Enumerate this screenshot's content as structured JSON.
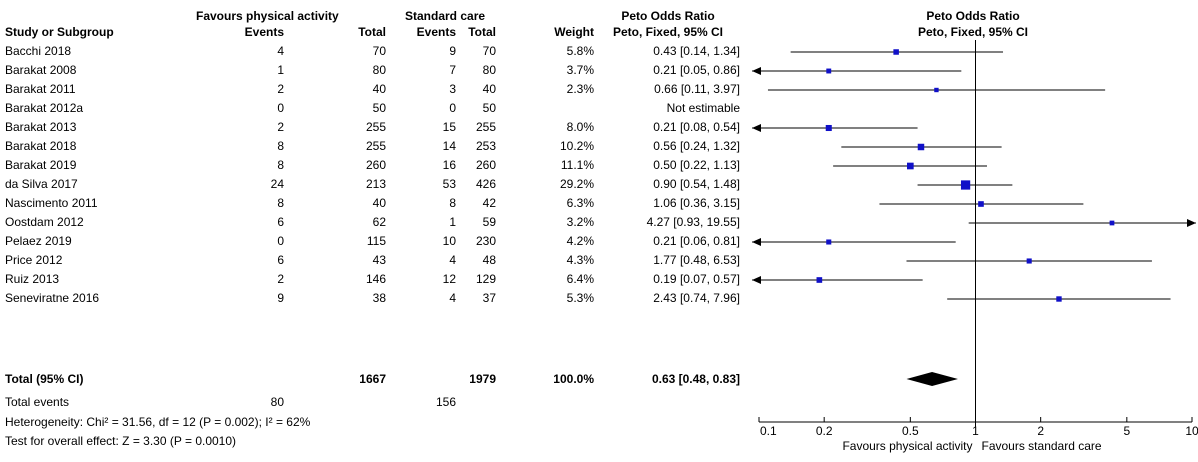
{
  "header": {
    "group1": "Favours physical activity",
    "group2": "Standard care",
    "effect_top": "Peto Odds Ratio",
    "plot_top": "Peto Odds Ratio",
    "col_study": "Study or Subgroup",
    "col_events1": "Events",
    "col_total1": "Total",
    "col_events2": "Events",
    "col_total2": "Total",
    "col_weight": "Weight",
    "col_ci": "Peto, Fixed, 95% CI",
    "plot_ci": "Peto, Fixed, 95% CI"
  },
  "studies": [
    {
      "name": "Bacchi 2018",
      "e1": "4",
      "t1": "70",
      "e2": "9",
      "t2": "70",
      "weight": "5.8%",
      "ci": "0.43 [0.14, 1.34]"
    },
    {
      "name": "Barakat 2008",
      "e1": "1",
      "t1": "80",
      "e2": "7",
      "t2": "80",
      "weight": "3.7%",
      "ci": "0.21 [0.05, 0.86]"
    },
    {
      "name": "Barakat 2011",
      "e1": "2",
      "t1": "40",
      "e2": "3",
      "t2": "40",
      "weight": "2.3%",
      "ci": "0.66 [0.11, 3.97]"
    },
    {
      "name": "Barakat 2012a",
      "e1": "0",
      "t1": "50",
      "e2": "0",
      "t2": "50",
      "weight": "",
      "ci": "Not estimable"
    },
    {
      "name": "Barakat 2013",
      "e1": "2",
      "t1": "255",
      "e2": "15",
      "t2": "255",
      "weight": "8.0%",
      "ci": "0.21 [0.08, 0.54]"
    },
    {
      "name": "Barakat 2018",
      "e1": "8",
      "t1": "255",
      "e2": "14",
      "t2": "253",
      "weight": "10.2%",
      "ci": "0.56 [0.24, 1.32]"
    },
    {
      "name": "Barakat 2019",
      "e1": "8",
      "t1": "260",
      "e2": "16",
      "t2": "260",
      "weight": "11.1%",
      "ci": "0.50 [0.22, 1.13]"
    },
    {
      "name": "da Silva 2017",
      "e1": "24",
      "t1": "213",
      "e2": "53",
      "t2": "426",
      "weight": "29.2%",
      "ci": "0.90 [0.54, 1.48]"
    },
    {
      "name": "Nascimento 2011",
      "e1": "8",
      "t1": "40",
      "e2": "8",
      "t2": "42",
      "weight": "6.3%",
      "ci": "1.06 [0.36, 3.15]"
    },
    {
      "name": "Oostdam 2012",
      "e1": "6",
      "t1": "62",
      "e2": "1",
      "t2": "59",
      "weight": "3.2%",
      "ci": "4.27 [0.93, 19.55]"
    },
    {
      "name": "Pelaez 2019",
      "e1": "0",
      "t1": "115",
      "e2": "10",
      "t2": "230",
      "weight": "4.2%",
      "ci": "0.21 [0.06, 0.81]"
    },
    {
      "name": "Price 2012",
      "e1": "6",
      "t1": "43",
      "e2": "4",
      "t2": "48",
      "weight": "4.3%",
      "ci": "1.77 [0.48, 6.53]"
    },
    {
      "name": "Ruiz 2013",
      "e1": "2",
      "t1": "146",
      "e2": "12",
      "t2": "129",
      "weight": "6.4%",
      "ci": "0.19 [0.07, 0.57]"
    },
    {
      "name": "Seneviratne 2016",
      "e1": "9",
      "t1": "38",
      "e2": "4",
      "t2": "37",
      "weight": "5.3%",
      "ci": "2.43 [0.74, 7.96]"
    }
  ],
  "total": {
    "label": "Total (95% CI)",
    "t1": "1667",
    "t2": "1979",
    "weight": "100.0%",
    "ci": "0.63 [0.48, 0.83]"
  },
  "total_events": {
    "label": "Total events",
    "e1": "80",
    "e2": "156"
  },
  "heterogeneity": "Heterogeneity: Chi² = 31.56, df = 12 (P = 0.002); I² = 62%",
  "overall_effect": "Test for overall effect: Z = 3.30 (P = 0.0010)",
  "axis": {
    "ticks": [
      "0.1",
      "0.2",
      "0.5",
      "1",
      "2",
      "5",
      "10"
    ],
    "favours_left": "Favours physical activity",
    "favours_right": "Favours standard care"
  },
  "colors": {
    "marker": "#1010c8",
    "line": "#000000",
    "diamond": "#000000"
  },
  "chart_data": {
    "type": "forest",
    "scale": "log",
    "xlim": [
      0.1,
      10
    ],
    "reference": 1,
    "points": [
      {
        "study": "Bacchi 2018",
        "or": 0.43,
        "lo": 0.14,
        "hi": 1.34,
        "weight": 5.8
      },
      {
        "study": "Barakat 2008",
        "or": 0.21,
        "lo": 0.05,
        "hi": 0.86,
        "weight": 3.7
      },
      {
        "study": "Barakat 2011",
        "or": 0.66,
        "lo": 0.11,
        "hi": 3.97,
        "weight": 2.3
      },
      {
        "study": "Barakat 2012a",
        "or": null,
        "lo": null,
        "hi": null,
        "weight": null
      },
      {
        "study": "Barakat 2013",
        "or": 0.21,
        "lo": 0.08,
        "hi": 0.54,
        "weight": 8.0
      },
      {
        "study": "Barakat 2018",
        "or": 0.56,
        "lo": 0.24,
        "hi": 1.32,
        "weight": 10.2
      },
      {
        "study": "Barakat 2019",
        "or": 0.5,
        "lo": 0.22,
        "hi": 1.13,
        "weight": 11.1
      },
      {
        "study": "da Silva 2017",
        "or": 0.9,
        "lo": 0.54,
        "hi": 1.48,
        "weight": 29.2
      },
      {
        "study": "Nascimento 2011",
        "or": 1.06,
        "lo": 0.36,
        "hi": 3.15,
        "weight": 6.3
      },
      {
        "study": "Oostdam 2012",
        "or": 4.27,
        "lo": 0.93,
        "hi": 19.55,
        "weight": 3.2
      },
      {
        "study": "Pelaez 2019",
        "or": 0.21,
        "lo": 0.06,
        "hi": 0.81,
        "weight": 4.2
      },
      {
        "study": "Price 2012",
        "or": 1.77,
        "lo": 0.48,
        "hi": 6.53,
        "weight": 4.3
      },
      {
        "study": "Ruiz 2013",
        "or": 0.19,
        "lo": 0.07,
        "hi": 0.57,
        "weight": 6.4
      },
      {
        "study": "Seneviratne 2016",
        "or": 2.43,
        "lo": 0.74,
        "hi": 7.96,
        "weight": 5.3
      }
    ],
    "pooled": {
      "or": 0.63,
      "lo": 0.48,
      "hi": 0.83
    }
  }
}
